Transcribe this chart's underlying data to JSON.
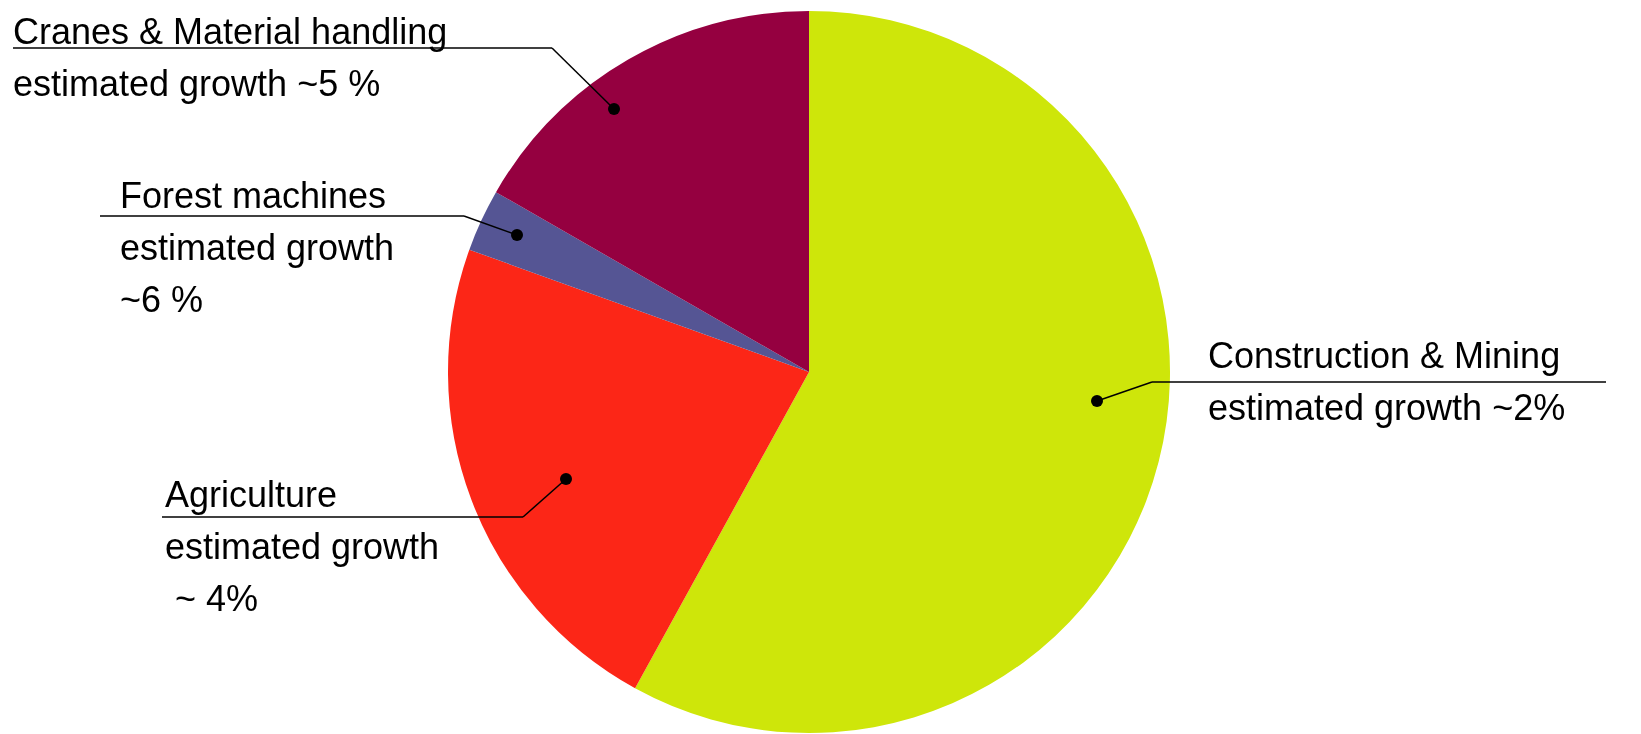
{
  "chart_data": {
    "type": "pie",
    "categories": [
      "Construction & Mining\nestimated growth ~2%",
      "Agriculture\nestimated growth\n ~ 4%",
      "Forest machines\nestimated growth\n~6 %",
      "Cranes & Material handling\nestimated growth ~5 %"
    ],
    "values": [
      58,
      22.5,
      2.8,
      16.7
    ],
    "colors": [
      "#cee60a",
      "#fc2617",
      "#555594",
      "#950040"
    ],
    "legend": false
  }
}
